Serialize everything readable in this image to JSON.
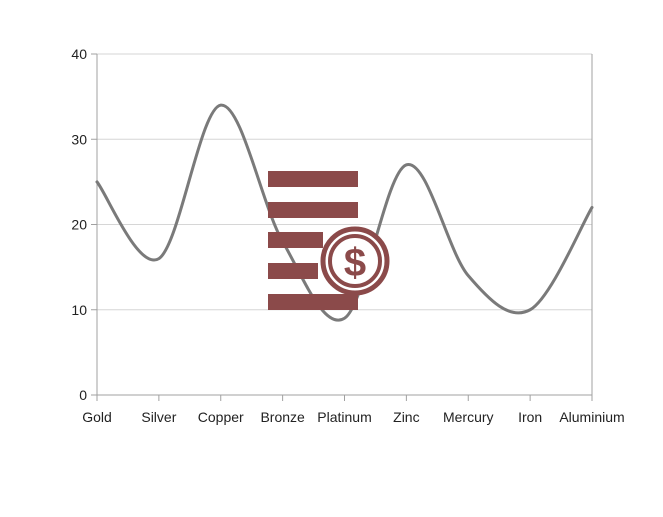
{
  "chart_data": {
    "type": "line",
    "categories": [
      "Gold",
      "Silver",
      "Copper",
      "Bronze",
      "Platinum",
      "Zinc",
      "Mercury",
      "Iron",
      "Aluminium"
    ],
    "series": [
      {
        "values": [
          25,
          16,
          34,
          18,
          9,
          27,
          14,
          10,
          22
        ]
      }
    ],
    "ylim": [
      0,
      40
    ],
    "yticks": [
      0,
      10,
      20,
      30,
      40
    ],
    "grid": true,
    "line_color": "#7a7a7a",
    "grid_color": "#d6d6d6",
    "axis_color": "#a0a0a0"
  },
  "watermark": {
    "icon": "money-document-icon",
    "color": "#8b4a4a"
  }
}
